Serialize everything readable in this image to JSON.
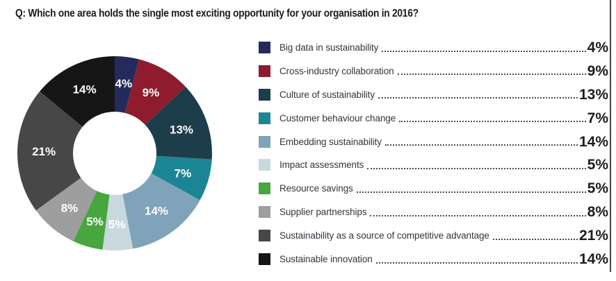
{
  "title": "Q: Which one area holds the single most exciting opportunity for your organisation in 2016?",
  "chart_data": {
    "type": "pie",
    "style": "donut",
    "title": "Q: Which one area holds the single most exciting opportunity for your organisation in 2016?",
    "start_angle_deg": -90,
    "direction": "clockwise",
    "inner_radius_ratio": 0.43,
    "legend_position": "right",
    "categories": [
      "Big data in sustainability",
      "Cross-industry collaboration",
      "Culture of sustainability",
      "Customer behaviour change",
      "Embedding sustainability",
      "Impact assessments",
      "Resource savings",
      "Supplier partnerships",
      "Sustainability as a source of competitive advantage",
      "Sustainable innovation"
    ],
    "values": [
      4,
      9,
      13,
      7,
      14,
      5,
      5,
      8,
      21,
      14
    ],
    "value_labels": [
      "4%",
      "9%",
      "13%",
      "7%",
      "14%",
      "5%",
      "5%",
      "8%",
      "21%",
      "14%"
    ],
    "colors": [
      "#242b5c",
      "#8e1c2c",
      "#1e3d4a",
      "#1c8595",
      "#7fa3b8",
      "#c8d9de",
      "#47a63d",
      "#9e9e9e",
      "#474747",
      "#161616"
    ],
    "slice_label_color": "#ffffff"
  },
  "decorations": {
    "right_rule_color": "#454545"
  }
}
